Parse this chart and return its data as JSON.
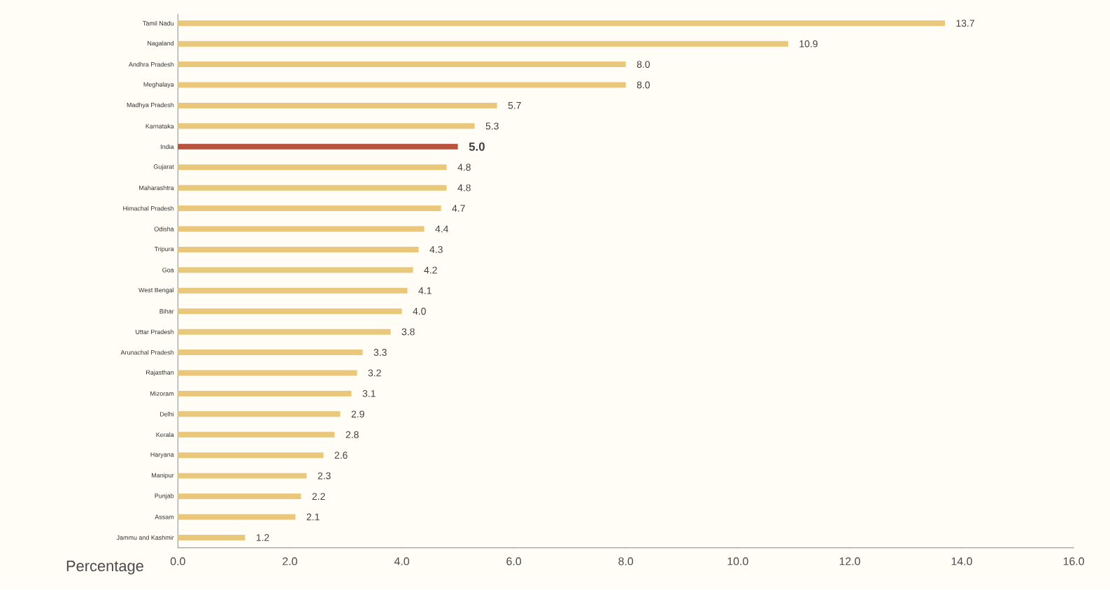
{
  "chart_data": {
    "type": "bar",
    "orientation": "horizontal",
    "xlabel": "Percentage",
    "categories": [
      "Tamil Nadu",
      "Nagaland",
      "Andhra Pradesh",
      "Meghalaya",
      "Madhya Pradesh",
      "Karnataka",
      "India",
      "Gujarat",
      "Maharashtra",
      "Himachal Pradesh",
      "Odisha",
      "Tripura",
      "Goa",
      "West Bengal",
      "Bihar",
      "Uttar Pradesh",
      "Arunachal Pradesh",
      "Rajasthan",
      "Mizoram",
      "Delhi",
      "Kerala",
      "Haryana",
      "Manipur",
      "Punjab",
      "Assam",
      "Jammu and Kashmir"
    ],
    "values": [
      13.7,
      10.9,
      8.0,
      8.0,
      5.7,
      5.3,
      5.0,
      4.8,
      4.8,
      4.7,
      4.4,
      4.3,
      4.2,
      4.1,
      4.0,
      3.8,
      3.3,
      3.2,
      3.1,
      2.9,
      2.8,
      2.6,
      2.3,
      2.2,
      2.1,
      1.2
    ],
    "colors": [
      "#e9c77b",
      "#e9c77b",
      "#e9c77b",
      "#e9c77b",
      "#e9c77b",
      "#e9c77b",
      "#b9533f",
      "#e9c77b",
      "#e9c77b",
      "#e9c77b",
      "#e9c77b",
      "#e9c77b",
      "#e9c77b",
      "#e9c77b",
      "#e9c77b",
      "#e9c77b",
      "#e9c77b",
      "#e9c77b",
      "#e9c77b",
      "#e9c77b",
      "#e9c77b",
      "#e9c77b",
      "#e9c77b",
      "#e9c77b",
      "#e9c77b",
      "#e9c77b"
    ],
    "value_labels": [
      "13.7",
      "10.9",
      "8.0",
      "8.0",
      "5.7",
      "5.3",
      "5.0",
      "4.8",
      "4.8",
      "4.7",
      "4.4",
      "4.3",
      "4.2",
      "4.1",
      "4.0",
      "3.8",
      "3.3",
      "3.2",
      "3.1",
      "2.9",
      "2.8",
      "2.6",
      "2.3",
      "2.2",
      "2.1",
      "1.2"
    ],
    "xlim": [
      0,
      16
    ],
    "xticks": [
      {
        "value": 0,
        "label": "0.0"
      },
      {
        "value": 2,
        "label": "2.0"
      },
      {
        "value": 4,
        "label": "4.0"
      },
      {
        "value": 6,
        "label": "6.0"
      },
      {
        "value": 8,
        "label": "8.0"
      },
      {
        "value": 10,
        "label": "10.0"
      },
      {
        "value": 12,
        "label": "12.0"
      },
      {
        "value": 14,
        "label": "14.0"
      },
      {
        "value": 16,
        "label": "16.0"
      }
    ]
  }
}
